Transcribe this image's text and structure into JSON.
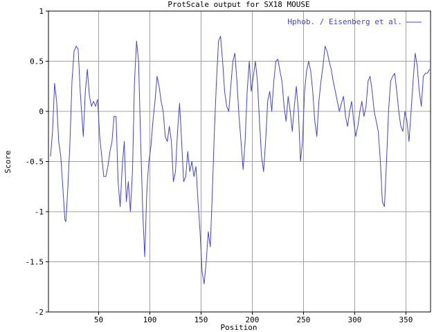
{
  "chart_data": {
    "type": "line",
    "title": "ProtScale output for SX18 MOUSE",
    "xlabel": "Position",
    "ylabel": "Score",
    "xlim": [
      1,
      374
    ],
    "ylim": [
      -2,
      1
    ],
    "xticks": [
      50,
      100,
      150,
      200,
      250,
      300,
      350
    ],
    "yticks": [
      -2,
      -1.5,
      -1,
      -0.5,
      0,
      0.5,
      1
    ],
    "grid": true,
    "legend_position": "top-right",
    "series": [
      {
        "name": "Hphob. / Eisenberg et al.",
        "color": "#4040e0",
        "points": [
          [
            3,
            -0.45
          ],
          [
            5,
            -0.2
          ],
          [
            7,
            0.28
          ],
          [
            9,
            0.1
          ],
          [
            11,
            -0.3
          ],
          [
            13,
            -0.45
          ],
          [
            15,
            -0.75
          ],
          [
            17,
            -1.08
          ],
          [
            18,
            -1.1
          ],
          [
            20,
            -0.75
          ],
          [
            22,
            -0.3
          ],
          [
            24,
            0.3
          ],
          [
            26,
            0.6
          ],
          [
            28,
            0.65
          ],
          [
            30,
            0.62
          ],
          [
            32,
            0.2
          ],
          [
            34,
            -0.1
          ],
          [
            35,
            -0.25
          ],
          [
            37,
            0.2
          ],
          [
            39,
            0.42
          ],
          [
            41,
            0.15
          ],
          [
            43,
            0.05
          ],
          [
            45,
            0.1
          ],
          [
            47,
            0.05
          ],
          [
            49,
            0.12
          ],
          [
            51,
            -0.25
          ],
          [
            53,
            -0.45
          ],
          [
            55,
            -0.65
          ],
          [
            57,
            -0.65
          ],
          [
            59,
            -0.55
          ],
          [
            61,
            -0.4
          ],
          [
            63,
            -0.3
          ],
          [
            65,
            -0.05
          ],
          [
            67,
            -0.05
          ],
          [
            69,
            -0.7
          ],
          [
            71,
            -0.95
          ],
          [
            73,
            -0.55
          ],
          [
            75,
            -0.3
          ],
          [
            77,
            -0.9
          ],
          [
            79,
            -0.7
          ],
          [
            81,
            -1.0
          ],
          [
            83,
            -0.6
          ],
          [
            85,
            0.3
          ],
          [
            87,
            0.7
          ],
          [
            89,
            0.5
          ],
          [
            91,
            -0.3
          ],
          [
            93,
            -1.0
          ],
          [
            95,
            -1.45
          ],
          [
            97,
            -0.8
          ],
          [
            99,
            -0.5
          ],
          [
            101,
            -0.35
          ],
          [
            103,
            -0.1
          ],
          [
            105,
            0.1
          ],
          [
            107,
            0.35
          ],
          [
            109,
            0.25
          ],
          [
            111,
            0.1
          ],
          [
            113,
            0.0
          ],
          [
            115,
            -0.25
          ],
          [
            117,
            -0.3
          ],
          [
            119,
            -0.15
          ],
          [
            121,
            -0.3
          ],
          [
            123,
            -0.7
          ],
          [
            125,
            -0.6
          ],
          [
            127,
            -0.2
          ],
          [
            129,
            0.08
          ],
          [
            131,
            -0.3
          ],
          [
            133,
            -0.7
          ],
          [
            135,
            -0.65
          ],
          [
            137,
            -0.4
          ],
          [
            139,
            -0.6
          ],
          [
            141,
            -0.5
          ],
          [
            143,
            -0.65
          ],
          [
            145,
            -0.55
          ],
          [
            147,
            -0.9
          ],
          [
            149,
            -1.2
          ],
          [
            151,
            -1.6
          ],
          [
            153,
            -1.72
          ],
          [
            155,
            -1.5
          ],
          [
            157,
            -1.2
          ],
          [
            159,
            -1.35
          ],
          [
            161,
            -0.8
          ],
          [
            163,
            -0.2
          ],
          [
            165,
            0.3
          ],
          [
            167,
            0.7
          ],
          [
            169,
            0.75
          ],
          [
            171,
            0.5
          ],
          [
            173,
            0.2
          ],
          [
            175,
            0.05
          ],
          [
            177,
            0.0
          ],
          [
            179,
            0.25
          ],
          [
            181,
            0.5
          ],
          [
            183,
            0.58
          ],
          [
            185,
            0.3
          ],
          [
            187,
            -0.05
          ],
          [
            189,
            -0.3
          ],
          [
            191,
            -0.58
          ],
          [
            193,
            -0.3
          ],
          [
            195,
            0.2
          ],
          [
            197,
            0.5
          ],
          [
            199,
            0.2
          ],
          [
            201,
            0.35
          ],
          [
            203,
            0.5
          ],
          [
            205,
            0.3
          ],
          [
            207,
            -0.1
          ],
          [
            209,
            -0.45
          ],
          [
            211,
            -0.6
          ],
          [
            213,
            -0.3
          ],
          [
            215,
            0.1
          ],
          [
            217,
            0.2
          ],
          [
            219,
            0.0
          ],
          [
            221,
            0.3
          ],
          [
            223,
            0.5
          ],
          [
            225,
            0.52
          ],
          [
            227,
            0.4
          ],
          [
            229,
            0.3
          ],
          [
            231,
            0.05
          ],
          [
            233,
            -0.1
          ],
          [
            235,
            0.15
          ],
          [
            237,
            0.0
          ],
          [
            239,
            -0.2
          ],
          [
            241,
            0.05
          ],
          [
            243,
            0.25
          ],
          [
            245,
            0.0
          ],
          [
            247,
            -0.5
          ],
          [
            249,
            -0.3
          ],
          [
            251,
            0.2
          ],
          [
            253,
            0.4
          ],
          [
            255,
            0.5
          ],
          [
            257,
            0.4
          ],
          [
            259,
            0.2
          ],
          [
            261,
            -0.1
          ],
          [
            263,
            -0.25
          ],
          [
            265,
            0.1
          ],
          [
            267,
            0.3
          ],
          [
            269,
            0.45
          ],
          [
            271,
            0.65
          ],
          [
            273,
            0.6
          ],
          [
            275,
            0.5
          ],
          [
            277,
            0.42
          ],
          [
            279,
            0.3
          ],
          [
            281,
            0.2
          ],
          [
            283,
            0.1
          ],
          [
            285,
            0.0
          ],
          [
            287,
            0.08
          ],
          [
            289,
            0.15
          ],
          [
            291,
            -0.05
          ],
          [
            293,
            -0.15
          ],
          [
            295,
            0.0
          ],
          [
            297,
            0.1
          ],
          [
            299,
            -0.1
          ],
          [
            301,
            -0.25
          ],
          [
            303,
            -0.15
          ],
          [
            305,
            0.0
          ],
          [
            307,
            0.1
          ],
          [
            309,
            -0.05
          ],
          [
            311,
            0.05
          ],
          [
            313,
            0.3
          ],
          [
            315,
            0.35
          ],
          [
            317,
            0.2
          ],
          [
            319,
            0.0
          ],
          [
            321,
            -0.1
          ],
          [
            323,
            -0.2
          ],
          [
            325,
            -0.5
          ],
          [
            327,
            -0.9
          ],
          [
            329,
            -0.95
          ],
          [
            331,
            -0.5
          ],
          [
            333,
            0.0
          ],
          [
            335,
            0.3
          ],
          [
            337,
            0.35
          ],
          [
            339,
            0.38
          ],
          [
            341,
            0.2
          ],
          [
            343,
            0.0
          ],
          [
            345,
            -0.15
          ],
          [
            347,
            -0.2
          ],
          [
            349,
            0.0
          ],
          [
            351,
            -0.1
          ],
          [
            353,
            -0.3
          ],
          [
            355,
            0.0
          ],
          [
            357,
            0.3
          ],
          [
            359,
            0.58
          ],
          [
            361,
            0.45
          ],
          [
            363,
            0.2
          ],
          [
            365,
            0.05
          ],
          [
            367,
            0.35
          ],
          [
            369,
            0.38
          ],
          [
            371,
            0.38
          ],
          [
            373,
            0.42
          ]
        ]
      }
    ]
  }
}
